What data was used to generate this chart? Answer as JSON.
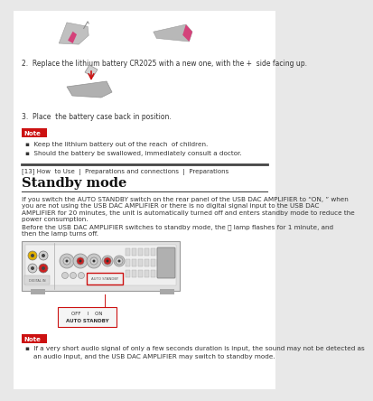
{
  "bg_color": "#e8e8e8",
  "page_bg": "#ffffff",
  "step2_text": "2.  Replace the lithium battery CR2025 with a new one, with the +  side facing up.",
  "step3_text": "3.  Place  the battery case back in position.",
  "note_label": "Note",
  "note_bg": "#cc1111",
  "note_text_color": "#ffffff",
  "bullet1": "Keep the lithium battery out of the reach  of children.",
  "bullet2": "Should the battery be swallowed, immediately consult a doctor.",
  "breadcrumb": "[13] How  to Use  |  Preparations and connections  |  Preparations",
  "section_title": "Standby mode",
  "body_line1": "If you switch the AUTO STANDBY switch on the rear panel of the USB DAC AMPLIFIER to “ON, ” when",
  "body_line2": "you are not using the USB DAC AMPLIFIER or there is no digital signal input to the USB DAC",
  "body_line3": "AMPLIFIER for 20 minutes, the unit is automatically turned off and enters standby mode to reduce the",
  "body_line4": "power consumption.",
  "body_line5": "Before the USB DAC AMPLIFIER switches to standby mode, the ⏻ lamp flashes for 1 minute, and",
  "body_line6": "then the lamp turns off.",
  "note2_line1": "If a very short audio signal of only a few seconds duration is input, the sound may not be detected as",
  "note2_line2": "an audio input, and the USB DAC AMPLIFIER may switch to standby mode.",
  "divider_color": "#555555",
  "text_color": "#333333",
  "body_fontsize": 5.2,
  "breadcrumb_fontsize": 5.0,
  "title_fontsize": 10.5,
  "step_fontsize": 5.5,
  "note_fontsize": 5.2
}
